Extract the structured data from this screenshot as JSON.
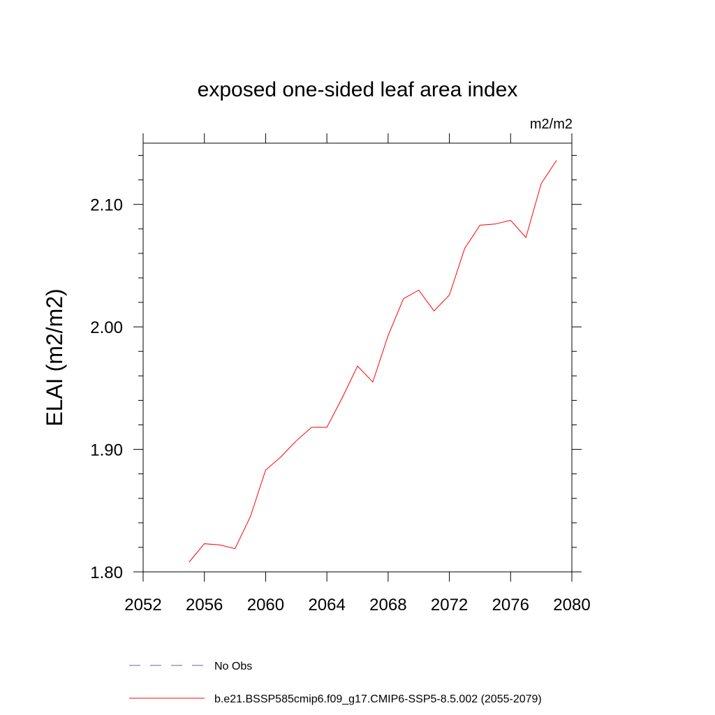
{
  "chart_data": {
    "type": "line",
    "title": "exposed one-sided leaf area index",
    "units": "m2/m2",
    "ylabel": "ELAI  (m2/m2)",
    "xlabel": "",
    "xlim": [
      2052,
      2080
    ],
    "ylim": [
      1.8,
      2.15
    ],
    "x_ticks": [
      2052,
      2056,
      2060,
      2064,
      2068,
      2072,
      2076,
      2080
    ],
    "x_tick_labels": [
      "2052",
      "2056",
      "2060",
      "2064",
      "2068",
      "2072",
      "2076",
      "2080"
    ],
    "y_ticks": [
      1.8,
      1.9,
      2.0,
      2.1
    ],
    "y_tick_labels": [
      "1.80",
      "1.90",
      "2.00",
      "2.10"
    ],
    "grid": false,
    "series": [
      {
        "name": "b.e21.BSSP585cmip6.f09_g17.CMIP6-SSP5-8.5.002 (2055-2079)",
        "color": "#ff0000",
        "style": "solid",
        "x": [
          2055,
          2056,
          2057,
          2058,
          2059,
          2060,
          2061,
          2062,
          2063,
          2064,
          2065,
          2066,
          2067,
          2068,
          2069,
          2070,
          2071,
          2072,
          2073,
          2074,
          2075,
          2076,
          2077,
          2078,
          2079
        ],
        "y": [
          1.808,
          1.823,
          1.822,
          1.819,
          1.845,
          1.883,
          1.894,
          1.907,
          1.918,
          1.918,
          1.942,
          1.968,
          1.955,
          1.993,
          2.023,
          2.03,
          2.013,
          2.026,
          2.064,
          2.083,
          2.084,
          2.087,
          2.073,
          2.117,
          2.136
        ]
      }
    ],
    "legend": {
      "placement": "bottom",
      "entries": [
        {
          "label": "No Obs",
          "color": "#6a5acd",
          "style": "dashed"
        },
        {
          "label": "b.e21.BSSP585cmip6.f09_g17.CMIP6-SSP5-8.5.002 (2055-2079)",
          "color": "#ff0000",
          "style": "solid"
        }
      ]
    }
  }
}
